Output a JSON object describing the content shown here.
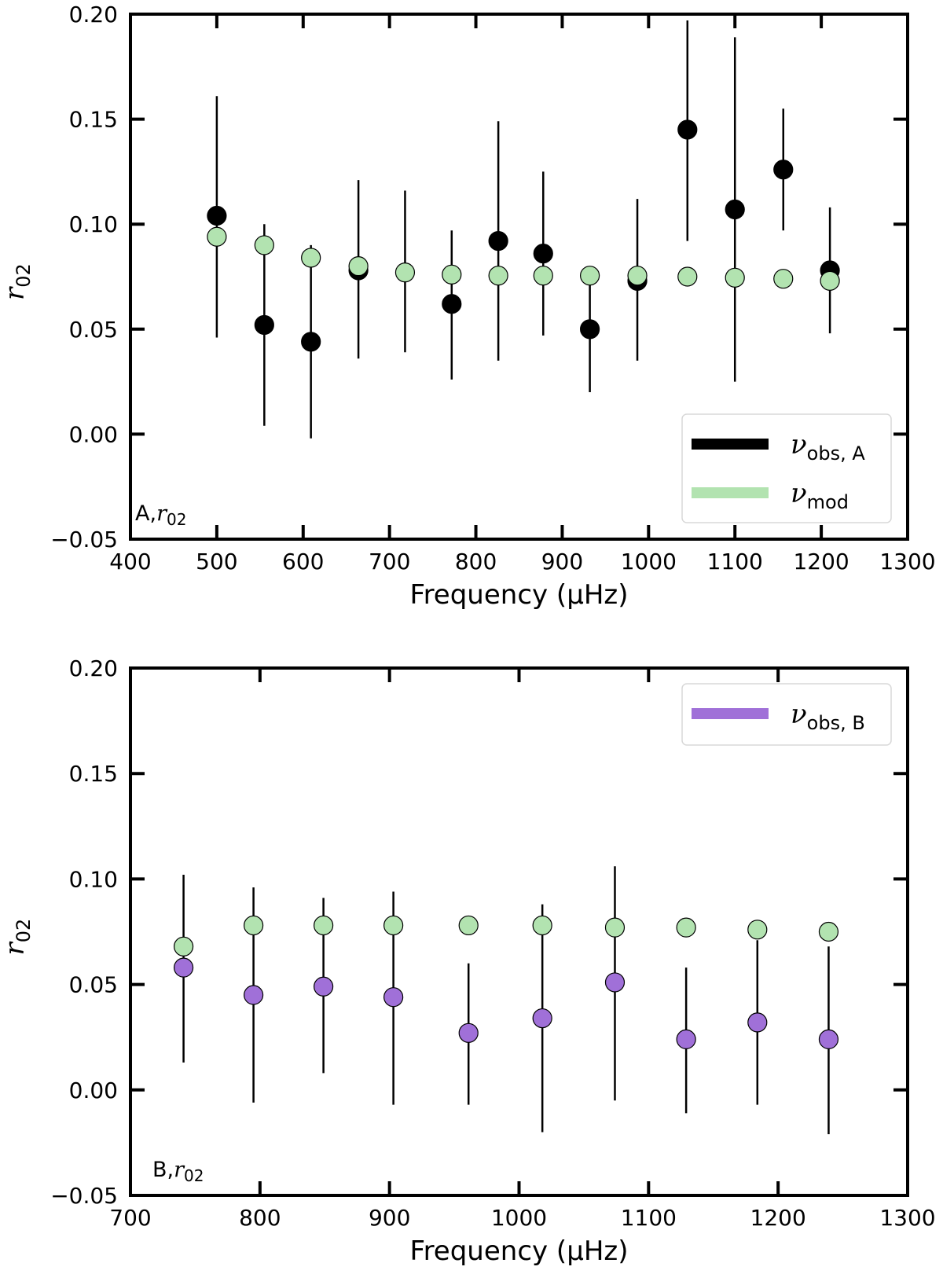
{
  "chart_data": [
    {
      "type": "scatter",
      "panel_label": "A,",
      "panel_label_var": "r",
      "panel_label_sub": "02",
      "xlabel": "Frequency (μHz)",
      "ylabel": "r",
      "ylabel_sub": "02",
      "xlim": [
        400,
        1300
      ],
      "ylim": [
        -0.05,
        0.2
      ],
      "xticks": [
        400,
        500,
        600,
        700,
        800,
        900,
        1000,
        1100,
        1200,
        1300
      ],
      "yticks": [
        -0.05,
        0.0,
        0.05,
        0.1,
        0.15,
        0.2
      ],
      "xtick_labels": [
        "400",
        "500",
        "600",
        "700",
        "800",
        "900",
        "1000",
        "1100",
        "1200",
        "1300"
      ],
      "ytick_labels": [
        "−0.05",
        "0.00",
        "0.05",
        "0.10",
        "0.15",
        "0.20"
      ],
      "legend_position": "lower-right",
      "series": [
        {
          "name": "ν_obs,A",
          "legend_symbol": "ν",
          "legend_sub": "obs, A",
          "color": "#000000",
          "points": [
            {
              "x": 500,
              "y": 0.104,
              "lo": 0.046,
              "hi": 0.161
            },
            {
              "x": 555,
              "y": 0.052,
              "lo": 0.004,
              "hi": 0.1
            },
            {
              "x": 609,
              "y": 0.044,
              "lo": -0.002,
              "hi": 0.09
            },
            {
              "x": 664,
              "y": 0.078,
              "lo": 0.036,
              "hi": 0.121
            },
            {
              "x": 772,
              "y": 0.062,
              "lo": 0.026,
              "hi": 0.097
            },
            {
              "x": 826,
              "y": 0.092,
              "lo": 0.035,
              "hi": 0.149
            },
            {
              "x": 878,
              "y": 0.086,
              "lo": 0.047,
              "hi": 0.125
            },
            {
              "x": 932,
              "y": 0.05,
              "lo": 0.02,
              "hi": 0.08
            },
            {
              "x": 987,
              "y": 0.073,
              "lo": 0.035,
              "hi": 0.112
            },
            {
              "x": 1045,
              "y": 0.145,
              "lo": 0.092,
              "hi": 0.197
            },
            {
              "x": 1100,
              "y": 0.107,
              "lo": 0.025,
              "hi": 0.189
            },
            {
              "x": 1156,
              "y": 0.126,
              "lo": 0.097,
              "hi": 0.155
            },
            {
              "x": 1210,
              "y": 0.078,
              "lo": 0.048,
              "hi": 0.108
            }
          ]
        },
        {
          "name": "ν_mod",
          "legend_symbol": "ν",
          "legend_sub": "mod",
          "color": "#b2e3b0",
          "points": [
            {
              "x": 500,
              "y": 0.094
            },
            {
              "x": 555,
              "y": 0.09
            },
            {
              "x": 609,
              "y": 0.084
            },
            {
              "x": 664,
              "y": 0.08
            },
            {
              "x": 718,
              "y": 0.077
            },
            {
              "x": 772,
              "y": 0.076
            },
            {
              "x": 826,
              "y": 0.0755
            },
            {
              "x": 878,
              "y": 0.0755
            },
            {
              "x": 932,
              "y": 0.0755
            },
            {
              "x": 987,
              "y": 0.0755
            },
            {
              "x": 1045,
              "y": 0.075
            },
            {
              "x": 1100,
              "y": 0.0745
            },
            {
              "x": 1156,
              "y": 0.074
            },
            {
              "x": 1210,
              "y": 0.073
            }
          ]
        }
      ],
      "extra_errorbars": [
        {
          "x": 718,
          "lo": 0.039,
          "hi": 0.116
        }
      ]
    },
    {
      "type": "scatter",
      "panel_label": "B,",
      "panel_label_var": "r",
      "panel_label_sub": "02",
      "xlabel": "Frequency (μHz)",
      "ylabel": "r",
      "ylabel_sub": "02",
      "xlim": [
        700,
        1300
      ],
      "ylim": [
        -0.05,
        0.2
      ],
      "xticks": [
        700,
        800,
        900,
        1000,
        1100,
        1200,
        1300
      ],
      "yticks": [
        -0.05,
        0.0,
        0.05,
        0.1,
        0.15,
        0.2
      ],
      "xtick_labels": [
        "700",
        "800",
        "900",
        "1000",
        "1100",
        "1200",
        "1300"
      ],
      "ytick_labels": [
        "−0.05",
        "0.00",
        "0.05",
        "0.10",
        "0.15",
        "0.20"
      ],
      "legend_position": "upper-right",
      "series": [
        {
          "name": "ν_obs,B",
          "legend_symbol": "ν",
          "legend_sub": "obs, B",
          "color": "#a070d8",
          "points": [
            {
              "x": 741,
              "y": 0.058,
              "lo": 0.013,
              "hi": 0.102
            },
            {
              "x": 795,
              "y": 0.045,
              "lo": -0.006,
              "hi": 0.096
            },
            {
              "x": 849,
              "y": 0.049,
              "lo": 0.008,
              "hi": 0.091
            },
            {
              "x": 903,
              "y": 0.044,
              "lo": -0.007,
              "hi": 0.094
            },
            {
              "x": 961,
              "y": 0.027,
              "lo": -0.007,
              "hi": 0.06
            },
            {
              "x": 1018,
              "y": 0.034,
              "lo": -0.02,
              "hi": 0.088
            },
            {
              "x": 1074,
              "y": 0.051,
              "lo": -0.005,
              "hi": 0.106
            },
            {
              "x": 1129,
              "y": 0.024,
              "lo": -0.011,
              "hi": 0.058
            },
            {
              "x": 1184,
              "y": 0.032,
              "lo": -0.007,
              "hi": 0.071
            },
            {
              "x": 1239,
              "y": 0.024,
              "lo": -0.021,
              "hi": 0.068
            }
          ]
        },
        {
          "name": "ν_mod",
          "color": "#b2e3b0",
          "points": [
            {
              "x": 741,
              "y": 0.068
            },
            {
              "x": 795,
              "y": 0.078
            },
            {
              "x": 849,
              "y": 0.078
            },
            {
              "x": 903,
              "y": 0.078
            },
            {
              "x": 961,
              "y": 0.078
            },
            {
              "x": 1018,
              "y": 0.078
            },
            {
              "x": 1074,
              "y": 0.077
            },
            {
              "x": 1129,
              "y": 0.077
            },
            {
              "x": 1184,
              "y": 0.076
            },
            {
              "x": 1239,
              "y": 0.075
            }
          ]
        }
      ]
    }
  ]
}
